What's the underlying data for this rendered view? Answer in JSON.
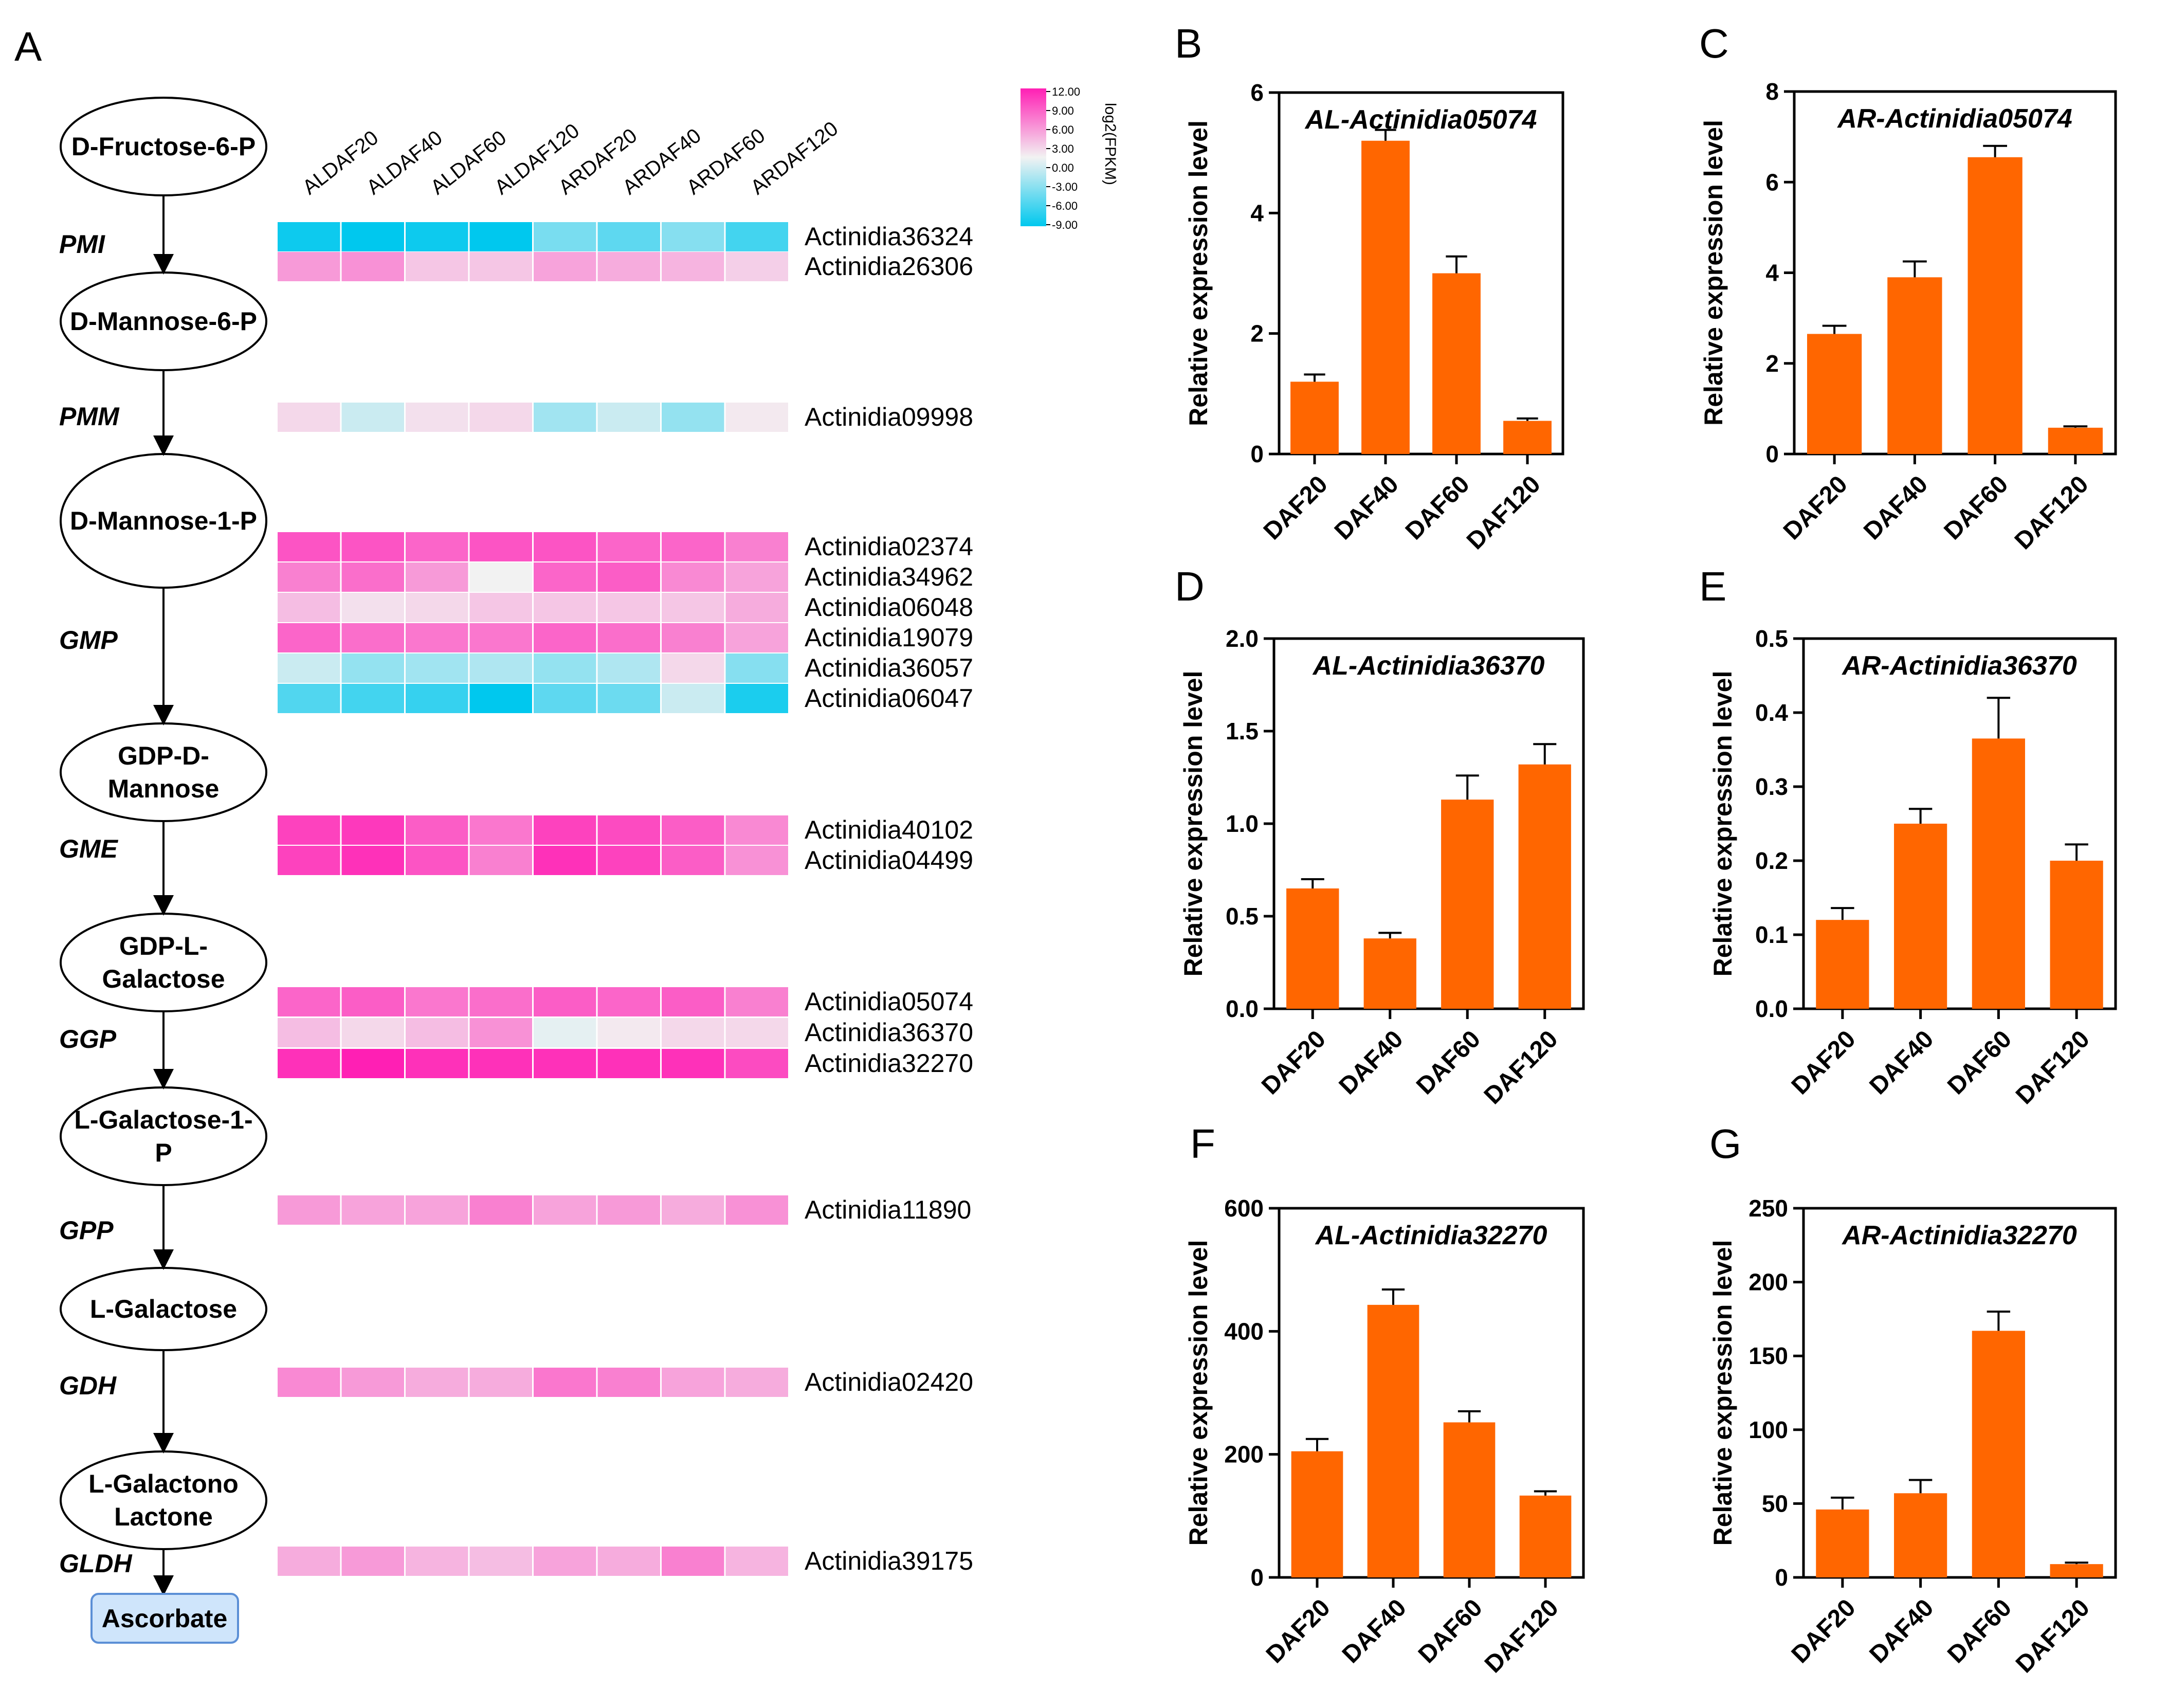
{
  "colors": {
    "bar": "#ff6600",
    "heat_high": "#ff1fb4",
    "heat_mid": "#f2f2f2",
    "heat_low": "#00c8ee",
    "ascorbate_fill": "#cfe5fb",
    "ascorbate_stroke": "#5b8fd6"
  },
  "pathway": {
    "panel": "A",
    "columns": [
      "ALDAF20",
      "ALDAF40",
      "ALDAF60",
      "ALDAF120",
      "ARDAF20",
      "ARDAF40",
      "ARDAF60",
      "ARDAF120"
    ],
    "legend": {
      "title": "log2(FPKM)",
      "ticks": [
        "12.00",
        "9.00",
        "6.00",
        "3.00",
        "0.00",
        "-3.00",
        "-6.00",
        "-9.00"
      ]
    },
    "nodes": [
      {
        "lines": [
          "D-Fructose-6-P"
        ]
      },
      {
        "lines": [
          "D-Mannose-6-P"
        ]
      },
      {
        "lines": [
          "D-Mannose-1-P"
        ]
      },
      {
        "lines": [
          "GDP-D-",
          "Mannose"
        ]
      },
      {
        "lines": [
          "GDP-L-",
          "Galactose"
        ]
      },
      {
        "lines": [
          "L-Galactose-1-",
          "P"
        ]
      },
      {
        "lines": [
          "L-Galactose"
        ]
      },
      {
        "lines": [
          "L-Galactono",
          "Lactone"
        ]
      }
    ],
    "product": "Ascorbate",
    "enzymes": [
      "PMI",
      "PMM",
      "GMP",
      "GME",
      "GGP",
      "GPP",
      "GDH",
      "GLDH"
    ],
    "genes": [
      {
        "id": "Actinidia36324",
        "values": [
          -8.5,
          -9,
          -8.5,
          -9,
          -4.5,
          -5.5,
          -4,
          -6.5
        ]
      },
      {
        "id": "Actinidia26306",
        "values": [
          5,
          5.5,
          2.5,
          2.5,
          4.5,
          4,
          3.5,
          2
        ]
      },
      {
        "id": "Actinidia09998",
        "values": [
          1.5,
          -1.5,
          1,
          1.5,
          -3,
          -1.5,
          -3.5,
          0.5
        ]
      },
      {
        "id": "Actinidia02374",
        "values": [
          9,
          9,
          8,
          9,
          9,
          8,
          8,
          6.5
        ]
      },
      {
        "id": "Actinidia34962",
        "values": [
          6.5,
          7.5,
          5,
          0,
          8,
          8.5,
          6,
          4.5
        ]
      },
      {
        "id": "Actinidia06048",
        "values": [
          3,
          1,
          1.5,
          2.5,
          2.5,
          2.5,
          2.5,
          4
        ]
      },
      {
        "id": "Actinidia19079",
        "values": [
          8,
          7.5,
          7,
          7,
          8,
          7.5,
          6.5,
          4.5
        ]
      },
      {
        "id": "Actinidia36057",
        "values": [
          -1.5,
          -3.5,
          -3,
          -2.5,
          -3.5,
          -2.5,
          1.5,
          -4
        ]
      },
      {
        "id": "Actinidia06047",
        "values": [
          -6,
          -6.5,
          -7,
          -9,
          -5.5,
          -5,
          -1.5,
          -8
        ]
      },
      {
        "id": "Actinidia40102",
        "values": [
          10,
          10.5,
          8.5,
          7,
          10,
          9.5,
          8.5,
          6
        ]
      },
      {
        "id": "Actinidia04499",
        "values": [
          10,
          11,
          9,
          6.5,
          11,
          10,
          8.5,
          5.5
        ]
      },
      {
        "id": "Actinidia05074",
        "values": [
          8,
          8.5,
          7,
          7.5,
          8.5,
          8,
          8.5,
          6.5
        ]
      },
      {
        "id": "Actinidia36370",
        "values": [
          3,
          1.5,
          3,
          5.5,
          -0.5,
          0.5,
          1.5,
          1.5
        ]
      },
      {
        "id": "Actinidia32270",
        "values": [
          11,
          12,
          11,
          11,
          11,
          11,
          11,
          9.5
        ]
      },
      {
        "id": "Actinidia11890",
        "values": [
          5,
          4.5,
          4.5,
          6.5,
          4.5,
          5,
          4,
          5.5
        ]
      },
      {
        "id": "Actinidia02420",
        "values": [
          6,
          5,
          4,
          4,
          7,
          6.5,
          4.5,
          4
        ]
      },
      {
        "id": "Actinidia39175",
        "values": [
          4,
          5,
          3.5,
          3,
          4.5,
          4,
          6.5,
          3.5
        ]
      }
    ]
  },
  "chart_data": [
    {
      "panel": "B",
      "type": "bar",
      "title": "AL-Actinidia05074",
      "categories": [
        "DAF20",
        "DAF40",
        "DAF60",
        "DAF120"
      ],
      "values": [
        1.2,
        5.2,
        3.0,
        0.55
      ],
      "errors": [
        0.12,
        0.18,
        0.28,
        0.04
      ],
      "ylabel": "Relative expression level",
      "ylim": [
        0,
        6
      ],
      "yticks": [
        "0",
        "2",
        "4",
        "6"
      ]
    },
    {
      "panel": "C",
      "type": "bar",
      "title": "AR-Actinidia05074",
      "categories": [
        "DAF20",
        "DAF40",
        "DAF60",
        "DAF120"
      ],
      "values": [
        2.65,
        3.9,
        6.55,
        0.58
      ],
      "errors": [
        0.18,
        0.35,
        0.25,
        0.03
      ],
      "ylabel": "Relative expression level",
      "ylim": [
        0,
        8
      ],
      "yticks": [
        "0",
        "2",
        "4",
        "6",
        "8"
      ]
    },
    {
      "panel": "D",
      "type": "bar",
      "title": "AL-Actinidia36370",
      "categories": [
        "DAF20",
        "DAF40",
        "DAF60",
        "DAF120"
      ],
      "values": [
        0.65,
        0.38,
        1.13,
        1.32
      ],
      "errors": [
        0.05,
        0.03,
        0.13,
        0.11
      ],
      "ylabel": "Relative expression level",
      "ylim": [
        0,
        2.0
      ],
      "yticks": [
        "0.0",
        "0.5",
        "1.0",
        "1.5",
        "2.0"
      ]
    },
    {
      "panel": "E",
      "type": "bar",
      "title": "AR-Actinidia36370",
      "categories": [
        "DAF20",
        "DAF40",
        "DAF60",
        "DAF120"
      ],
      "values": [
        0.12,
        0.25,
        0.365,
        0.2
      ],
      "errors": [
        0.016,
        0.02,
        0.055,
        0.022
      ],
      "ylabel": "Relative expression level",
      "ylim": [
        0,
        0.5
      ],
      "yticks": [
        "0.0",
        "0.1",
        "0.2",
        "0.3",
        "0.4",
        "0.5"
      ]
    },
    {
      "panel": "F",
      "type": "bar",
      "title": "AL-Actinidia32270",
      "categories": [
        "DAF20",
        "DAF40",
        "DAF60",
        "DAF120"
      ],
      "values": [
        205,
        443,
        252,
        133
      ],
      "errors": [
        20,
        25,
        18,
        7
      ],
      "ylabel": "Relative expression level",
      "ylim": [
        0,
        600
      ],
      "yticks": [
        "0",
        "200",
        "400",
        "600"
      ]
    },
    {
      "panel": "G",
      "type": "bar",
      "title": "AR-Actinidia32270",
      "categories": [
        "DAF20",
        "DAF40",
        "DAF60",
        "DAF120"
      ],
      "values": [
        46,
        57,
        167,
        9
      ],
      "errors": [
        8,
        9,
        13,
        1
      ],
      "ylabel": "Relative expression level",
      "ylim": [
        0,
        250
      ],
      "yticks": [
        "0",
        "50",
        "100",
        "150",
        "200",
        "250"
      ]
    }
  ]
}
